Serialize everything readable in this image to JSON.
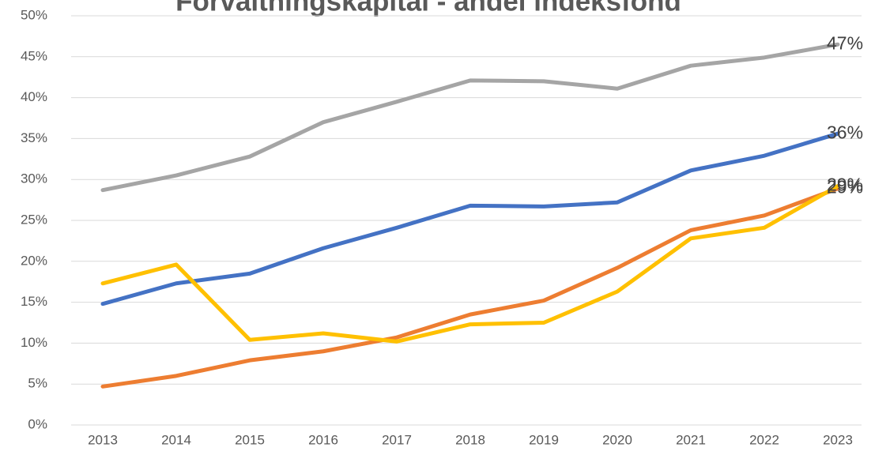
{
  "chart_data": {
    "type": "line",
    "title": "Forvaltningskapital - andel indeksfond",
    "x": [
      "2013",
      "2014",
      "2015",
      "2016",
      "2017",
      "2018",
      "2019",
      "2020",
      "2021",
      "2022",
      "2023"
    ],
    "series": [
      {
        "color": "#a5a5a5",
        "values": [
          28.7,
          30.5,
          32.8,
          37.0,
          39.5,
          42.1,
          42.0,
          41.1,
          43.9,
          44.9,
          46.5
        ],
        "value_labels": [
          null,
          null,
          null,
          null,
          null,
          null,
          null,
          null,
          null,
          null,
          "47%"
        ]
      },
      {
        "color": "#4472c4",
        "values": [
          14.8,
          17.3,
          18.5,
          21.6,
          24.1,
          26.8,
          26.7,
          27.2,
          31.1,
          32.9,
          35.6
        ],
        "value_labels": [
          null,
          null,
          null,
          null,
          null,
          null,
          null,
          null,
          null,
          null,
          "36%"
        ]
      },
      {
        "color": "#ed7d31",
        "values": [
          4.7,
          6.0,
          7.9,
          9.0,
          10.7,
          13.5,
          15.2,
          19.2,
          23.8,
          25.6,
          28.9
        ],
        "value_labels": [
          null,
          null,
          null,
          null,
          null,
          null,
          null,
          null,
          null,
          null,
          "29%"
        ]
      },
      {
        "color": "#ffc000",
        "values": [
          17.3,
          19.6,
          10.4,
          11.2,
          10.2,
          12.3,
          12.5,
          16.3,
          22.8,
          24.1,
          29.2
        ],
        "value_labels": [
          null,
          null,
          null,
          null,
          null,
          null,
          null,
          null,
          null,
          null,
          "29%"
        ]
      }
    ],
    "ylim": [
      0,
      50
    ],
    "yticks": [
      {
        "value": 0,
        "label": "0%"
      },
      {
        "value": 5,
        "label": "5%"
      },
      {
        "value": 10,
        "label": "10%"
      },
      {
        "value": 15,
        "label": "15%"
      },
      {
        "value": 20,
        "label": "20%"
      },
      {
        "value": 25,
        "label": "25%"
      },
      {
        "value": 30,
        "label": "30%"
      },
      {
        "value": 35,
        "label": "35%"
      },
      {
        "value": 40,
        "label": "40%"
      },
      {
        "value": 45,
        "label": "45%"
      },
      {
        "value": 50,
        "label": "50%"
      }
    ],
    "grid": true
  }
}
